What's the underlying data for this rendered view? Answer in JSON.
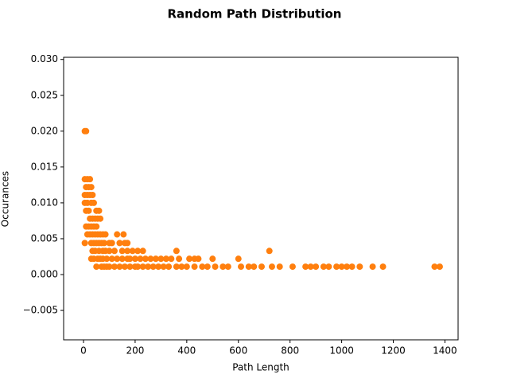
{
  "chart_data": {
    "type": "scatter",
    "title": "Random Path Distribution",
    "xlabel": "Path Length",
    "ylabel": "Occurances",
    "color": "#ff7f0e",
    "xlim": [
      -77,
      1451
    ],
    "ylim": [
      -0.0091,
      0.0303
    ],
    "xticks": [
      0,
      200,
      400,
      600,
      800,
      1000,
      1200,
      1400
    ],
    "yticks": [
      {
        "value": -0.005,
        "label": "−0.005"
      },
      {
        "value": 0,
        "label": "0.000"
      },
      {
        "value": 0.005,
        "label": "0.005"
      },
      {
        "value": 0.01,
        "label": "0.010"
      },
      {
        "value": 0.015,
        "label": "0.015"
      },
      {
        "value": 0.02,
        "label": "0.020"
      },
      {
        "value": 0.025,
        "label": "0.025"
      },
      {
        "value": 0.03,
        "label": "0.030"
      }
    ],
    "x": [
      5,
      5,
      5,
      5,
      5,
      10,
      10,
      10,
      10,
      15,
      15,
      15,
      15,
      20,
      20,
      20,
      25,
      25,
      25,
      25,
      30,
      30,
      30,
      30,
      30,
      35,
      35,
      35,
      35,
      40,
      40,
      40,
      40,
      45,
      45,
      45,
      50,
      50,
      50,
      50,
      55,
      55,
      55,
      60,
      60,
      60,
      65,
      65,
      65,
      70,
      70,
      75,
      75,
      75,
      80,
      80,
      85,
      85,
      90,
      90,
      100,
      100,
      100,
      110,
      110,
      120,
      120,
      130,
      130,
      140,
      140,
      150,
      150,
      155,
      160,
      160,
      170,
      170,
      170,
      180,
      180,
      190,
      200,
      200,
      210,
      210,
      220,
      230,
      230,
      240,
      250,
      260,
      270,
      280,
      290,
      300,
      310,
      320,
      330,
      340,
      360,
      360,
      370,
      380,
      400,
      410,
      430,
      430,
      445,
      460,
      480,
      500,
      510,
      540,
      560,
      600,
      610,
      640,
      660,
      690,
      720,
      730,
      760,
      810,
      860,
      880,
      900,
      930,
      950,
      980,
      1000,
      1020,
      1040,
      1070,
      1120,
      1160,
      1360,
      1380
    ],
    "values": [
      0.02,
      0.0133,
      0.0111,
      0.01,
      0.0044,
      0.02,
      0.0122,
      0.0089,
      0.0067,
      0.0133,
      0.0111,
      0.01,
      0.0056,
      0.0122,
      0.0089,
      0.0067,
      0.0133,
      0.0111,
      0.0078,
      0.0056,
      0.0122,
      0.01,
      0.0067,
      0.0044,
      0.0022,
      0.0111,
      0.0078,
      0.0056,
      0.0033,
      0.01,
      0.0067,
      0.0044,
      0.0022,
      0.0078,
      0.0056,
      0.0033,
      0.0089,
      0.0067,
      0.0044,
      0.0011,
      0.0078,
      0.0056,
      0.0022,
      0.0089,
      0.0044,
      0.0033,
      0.0078,
      0.0056,
      0.0022,
      0.0044,
      0.0011,
      0.0056,
      0.0033,
      0.0022,
      0.0044,
      0.0011,
      0.0056,
      0.0033,
      0.0022,
      0.0011,
      0.0044,
      0.0033,
      0.0011,
      0.0044,
      0.0022,
      0.0033,
      0.0011,
      0.0056,
      0.0022,
      0.0044,
      0.0011,
      0.0033,
      0.0022,
      0.0056,
      0.0044,
      0.0011,
      0.0044,
      0.0033,
      0.0022,
      0.0011,
      0.0022,
      0.0033,
      0.0022,
      0.0011,
      0.0033,
      0.0011,
      0.0022,
      0.0033,
      0.0011,
      0.0022,
      0.0011,
      0.0022,
      0.0011,
      0.0022,
      0.0011,
      0.0022,
      0.0011,
      0.0022,
      0.0011,
      0.0022,
      0.0033,
      0.0011,
      0.0022,
      0.0011,
      0.0011,
      0.0022,
      0.0011,
      0.0022,
      0.0022,
      0.0011,
      0.0011,
      0.0022,
      0.0011,
      0.0011,
      0.0011,
      0.0022,
      0.0011,
      0.0011,
      0.0011,
      0.0011,
      0.0033,
      0.0011,
      0.0011,
      0.0011,
      0.0011,
      0.0011,
      0.0011,
      0.0011,
      0.0011,
      0.0011,
      0.0011,
      0.0011,
      0.0011,
      0.0011,
      0.0011,
      0.0011,
      0.0011,
      0.0011
    ]
  }
}
